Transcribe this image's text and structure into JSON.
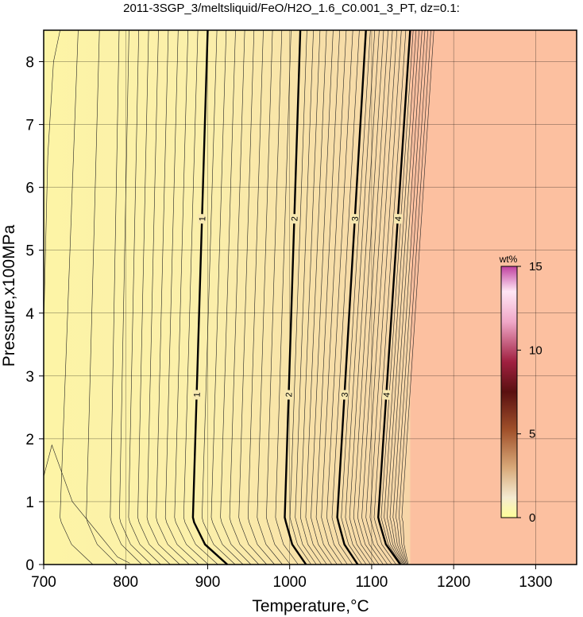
{
  "chart_data": {
    "type": "heatmap",
    "title": "2011-3SGP_3/meltsliquid/FeO/H2O_1.6_C0.001_3_PT, dz=0.1:",
    "xlabel": "Temperature,°C",
    "ylabel": "Pressure,x100MPa",
    "xlim": [
      700,
      1350
    ],
    "ylim": [
      0,
      8.5
    ],
    "xticks": [
      "700",
      "800",
      "900",
      "1000",
      "1100",
      "1200",
      "1300"
    ],
    "yticks": [
      "0",
      "1",
      "2",
      "3",
      "4",
      "5",
      "6",
      "7",
      "8"
    ],
    "grid": true,
    "colorbar": {
      "label": "wt%",
      "range": [
        0,
        15
      ],
      "ticks": [
        "0",
        "5",
        "10",
        "15"
      ]
    },
    "labeled_contours": [
      {
        "level": "1",
        "bottom_T": 924,
        "knee_T": 882,
        "top_T": 900
      },
      {
        "level": "2",
        "bottom_T": 1020,
        "knee_T": 994,
        "top_T": 1013
      },
      {
        "level": "3",
        "bottom_T": 1083,
        "knee_T": 1058,
        "top_T": 1093
      },
      {
        "level": "4",
        "bottom_T": 1135,
        "knee_T": 1108,
        "top_T": 1147
      }
    ],
    "region_colors": {
      "cool_low_fraction": "#fdf4a6",
      "warm_mid_fraction": "#f7dea8",
      "hot_region": "#fcc0a0"
    },
    "hot_region_start_T": 1148
  }
}
